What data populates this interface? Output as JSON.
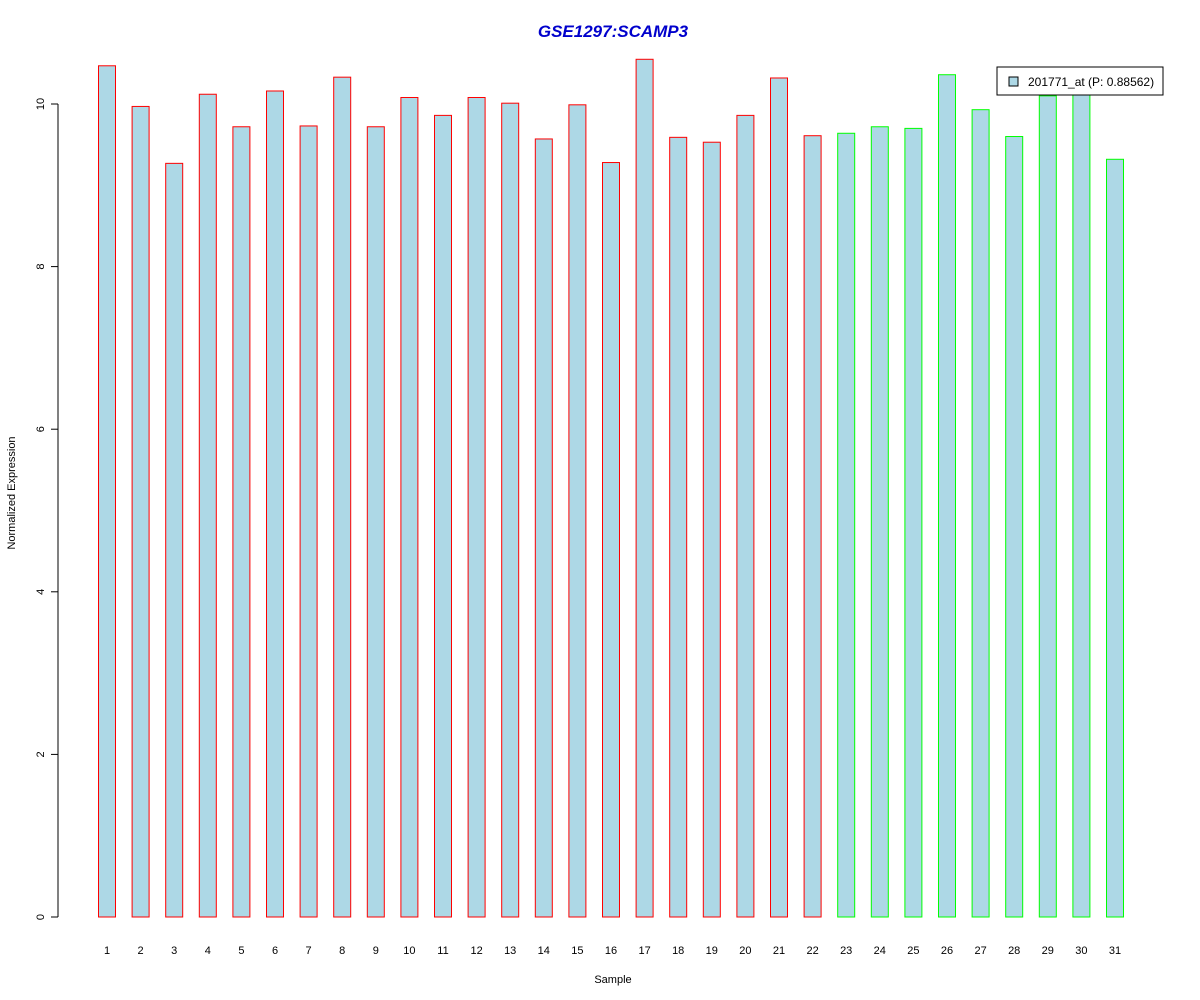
{
  "chart_data": {
    "type": "bar",
    "title": "GSE1297:SCAMP3",
    "xlabel": "Sample",
    "ylabel": "Normalized Expression",
    "ylim": [
      0,
      10.6
    ],
    "yticks": [
      0,
      2,
      4,
      6,
      8,
      10
    ],
    "grid": false,
    "legend_position": "top-right",
    "categories": [
      "1",
      "2",
      "3",
      "4",
      "5",
      "6",
      "7",
      "8",
      "9",
      "10",
      "11",
      "12",
      "13",
      "14",
      "15",
      "16",
      "17",
      "18",
      "19",
      "20",
      "21",
      "22",
      "23",
      "24",
      "25",
      "26",
      "27",
      "28",
      "29",
      "30",
      "31"
    ],
    "series": [
      {
        "name": "201771_at (P: 0.88562)",
        "values": [
          10.47,
          9.97,
          9.27,
          10.12,
          9.72,
          10.16,
          9.73,
          10.33,
          9.72,
          10.08,
          9.86,
          10.08,
          10.01,
          9.57,
          9.99,
          9.28,
          10.55,
          9.59,
          9.53,
          9.86,
          10.32,
          9.61,
          9.64,
          9.72,
          9.7,
          10.36,
          9.93,
          9.6,
          10.1,
          10.14,
          9.32
        ],
        "fill": "#add8e6"
      }
    ],
    "groups": [
      {
        "samples": [
          1,
          22
        ],
        "border_color": "#ff0000"
      },
      {
        "samples": [
          23,
          31
        ],
        "border_color": "#00ff00"
      }
    ],
    "title_color": "#0000cc"
  }
}
